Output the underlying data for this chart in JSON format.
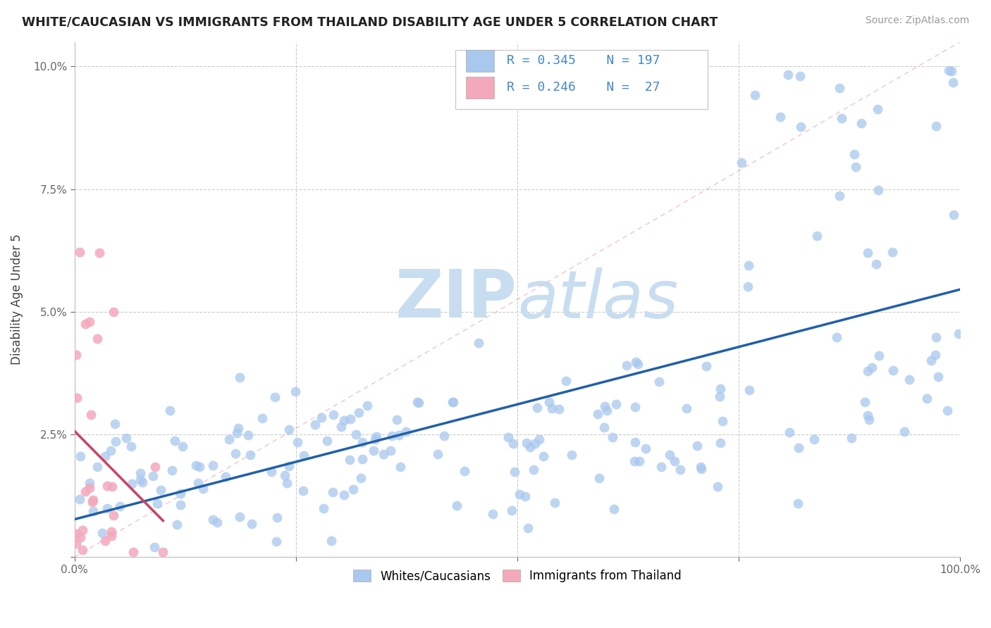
{
  "title": "WHITE/CAUCASIAN VS IMMIGRANTS FROM THAILAND DISABILITY AGE UNDER 5 CORRELATION CHART",
  "source": "Source: ZipAtlas.com",
  "ylabel": "Disability Age Under 5",
  "xlim": [
    0,
    1.0
  ],
  "ylim": [
    0,
    0.105
  ],
  "blue_R": 0.345,
  "blue_N": 197,
  "pink_R": 0.246,
  "pink_N": 27,
  "blue_color": "#A8C8EE",
  "pink_color": "#F4A8BC",
  "blue_line_color": "#2060A8",
  "pink_line_color": "#D04060",
  "diag_color": "#F0A8BC",
  "watermark_color": "#C8DDF0",
  "legend_label_blue": "Whites/Caucasians",
  "legend_label_pink": "Immigrants from Thailand",
  "legend_R_color": "#4488CC",
  "legend_N_color": "#4488CC",
  "legend_label_color": "#333333"
}
